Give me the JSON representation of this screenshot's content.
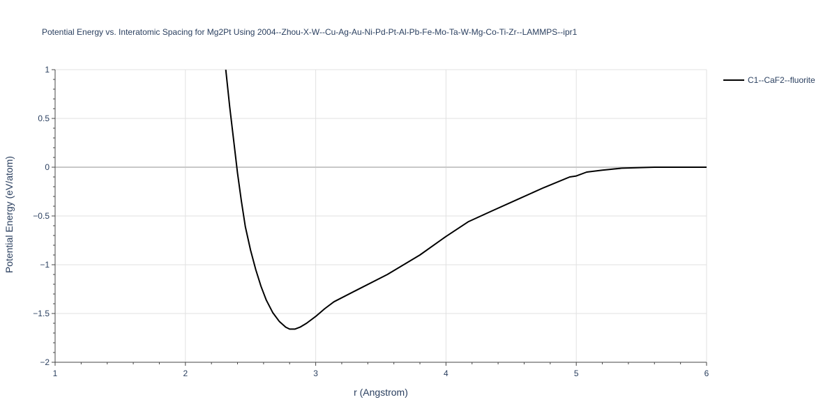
{
  "chart_data": {
    "type": "line",
    "title": "Potential Energy vs. Interatomic Spacing for Mg2Pt Using 2004--Zhou-X-W--Cu-Ag-Au-Ni-Pd-Pt-Al-Pb-Fe-Mo-Ta-W-Mg-Co-Ti-Zr--LAMMPS--ipr1",
    "xlabel": "r (Angstrom)",
    "ylabel": "Potential Energy (eV/atom)",
    "xlim": [
      1,
      6
    ],
    "ylim": [
      -2,
      1
    ],
    "x_ticks": [
      1,
      2,
      3,
      4,
      5,
      6
    ],
    "x_tick_labels": [
      "1",
      "2",
      "3",
      "4",
      "5",
      "6"
    ],
    "y_ticks": [
      -2,
      -1.5,
      -1,
      -0.5,
      0,
      0.5,
      1
    ],
    "y_tick_labels": [
      "−2",
      "−1.5",
      "−1",
      "−0.5",
      "0",
      "0.5",
      "1"
    ],
    "grid": true,
    "legend_position": "top-right",
    "series": [
      {
        "name": "C1--CaF2--fluorite",
        "color": "#000000",
        "x": [
          2.31,
          2.34,
          2.37,
          2.4,
          2.43,
          2.46,
          2.5,
          2.54,
          2.58,
          2.62,
          2.67,
          2.72,
          2.77,
          2.8,
          2.84,
          2.88,
          2.93,
          3.0,
          3.07,
          3.14,
          3.3,
          3.55,
          3.8,
          4.0,
          4.17,
          4.35,
          4.55,
          4.75,
          4.95,
          5.0,
          5.08,
          5.2,
          5.35,
          5.6,
          5.8,
          6.0
        ],
        "y": [
          1.0,
          0.62,
          0.28,
          -0.06,
          -0.35,
          -0.61,
          -0.85,
          -1.05,
          -1.22,
          -1.36,
          -1.49,
          -1.58,
          -1.64,
          -1.66,
          -1.66,
          -1.64,
          -1.6,
          -1.53,
          -1.45,
          -1.38,
          -1.27,
          -1.1,
          -0.9,
          -0.71,
          -0.56,
          -0.45,
          -0.33,
          -0.21,
          -0.1,
          -0.09,
          -0.05,
          -0.03,
          -0.01,
          0.0,
          0.0,
          0.0
        ]
      }
    ]
  }
}
